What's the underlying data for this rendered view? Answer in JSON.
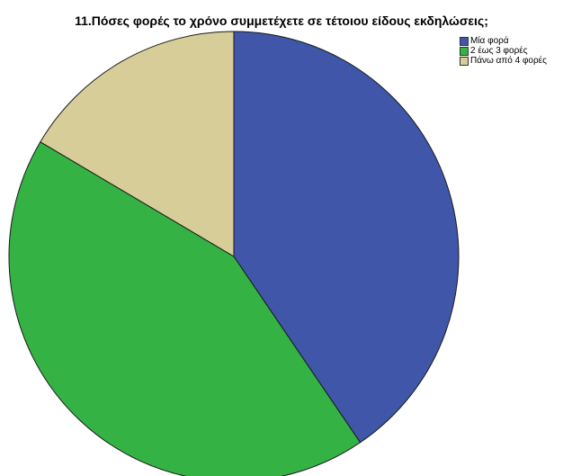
{
  "chart_data": {
    "type": "pie",
    "title": "11.Πόσες φορές το χρόνο συμμετέχετε σε τέτοιου είδους εκδηλώσεις;",
    "categories": [
      "Μία φορά",
      "2 έως 3 φορές",
      "Πάνω από 4 φορές"
    ],
    "values": [
      40.5,
      43.0,
      16.5
    ],
    "colors": [
      "#3f56a9",
      "#34b244",
      "#d6cd98"
    ],
    "start_angle": "12 o'clock",
    "direction": "clockwise",
    "legend_position": "top-right"
  }
}
